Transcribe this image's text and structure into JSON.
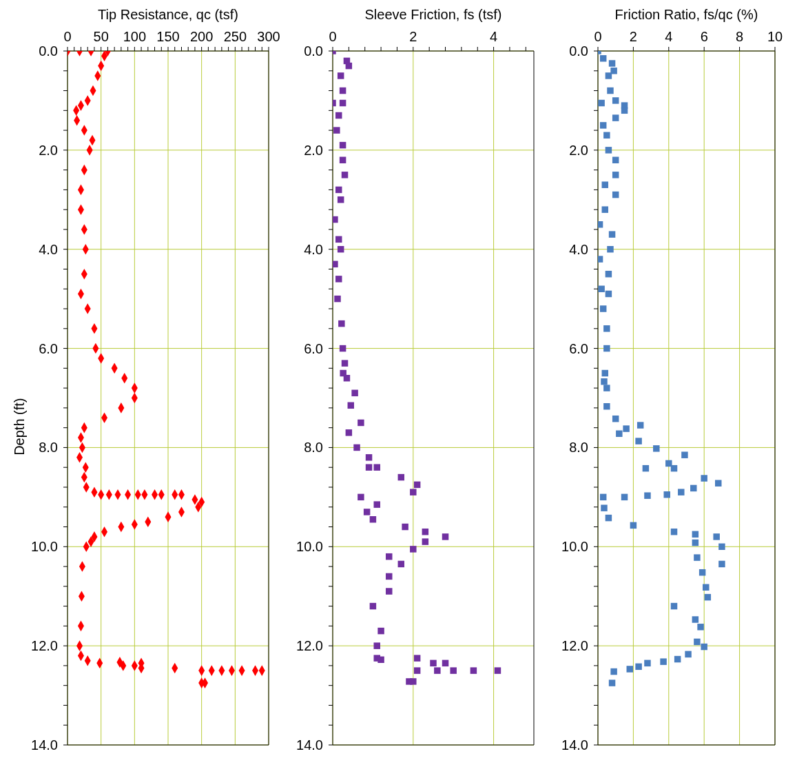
{
  "chart_data": [
    {
      "type": "scatter",
      "xlabel": "Tip Resistance, qc (tsf)",
      "ylabel": "Depth (ft)",
      "marker": "diamond",
      "grid": true,
      "xlim": [
        0,
        300
      ],
      "xticks": [
        0,
        {
          "value": 10,
          "label": null
        },
        {
          "value": 20,
          "label": null
        },
        {
          "value": 30,
          "label": null
        },
        {
          "value": 40,
          "label": null
        },
        50,
        {
          "value": 60,
          "label": null
        },
        {
          "value": 70,
          "label": null
        },
        {
          "value": 80,
          "label": null
        },
        {
          "value": 90,
          "label": null
        },
        100,
        {
          "value": 110,
          "label": null
        },
        {
          "value": 120,
          "label": null
        },
        {
          "value": 130,
          "label": null
        },
        {
          "value": 140,
          "label": null
        },
        150,
        {
          "value": 160,
          "label": null
        },
        {
          "value": 170,
          "label": null
        },
        {
          "value": 180,
          "label": null
        },
        {
          "value": 190,
          "label": null
        },
        200,
        {
          "value": 210,
          "label": null
        },
        {
          "value": 220,
          "label": null
        },
        {
          "value": 230,
          "label": null
        },
        {
          "value": 240,
          "label": null
        },
        250,
        {
          "value": 260,
          "label": null
        },
        {
          "value": 270,
          "label": null
        },
        {
          "value": 280,
          "label": null
        },
        {
          "value": 290,
          "label": null
        },
        300
      ],
      "ylim": [
        14,
        0
      ],
      "yticks": [
        {
          "value": 0,
          "label": "0.0"
        },
        {
          "value": 0.4,
          "label": null
        },
        {
          "value": 0.8,
          "label": null
        },
        {
          "value": 1.2,
          "label": null
        },
        {
          "value": 1.6,
          "label": null
        },
        {
          "value": 2,
          "label": "2.0"
        },
        {
          "value": 2.4,
          "label": null
        },
        {
          "value": 2.8,
          "label": null
        },
        {
          "value": 3.2,
          "label": null
        },
        {
          "value": 3.6,
          "label": null
        },
        {
          "value": 4,
          "label": "4.0"
        },
        {
          "value": 4.4,
          "label": null
        },
        {
          "value": 4.8,
          "label": null
        },
        {
          "value": 5.2,
          "label": null
        },
        {
          "value": 5.6,
          "label": null
        },
        {
          "value": 6,
          "label": "6.0"
        },
        {
          "value": 6.4,
          "label": null
        },
        {
          "value": 6.8,
          "label": null
        },
        {
          "value": 7.2,
          "label": null
        },
        {
          "value": 7.6,
          "label": null
        },
        {
          "value": 8,
          "label": "8.0"
        },
        {
          "value": 8.4,
          "label": null
        },
        {
          "value": 8.8,
          "label": null
        },
        {
          "value": 9.2,
          "label": null
        },
        {
          "value": 9.6,
          "label": null
        },
        {
          "value": 10,
          "label": "10.0"
        },
        {
          "value": 10.4,
          "label": null
        },
        {
          "value": 10.8,
          "label": null
        },
        {
          "value": 11.2,
          "label": null
        },
        {
          "value": 11.6,
          "label": null
        },
        {
          "value": 12,
          "label": "12.0"
        },
        {
          "value": 12.4,
          "label": null
        },
        {
          "value": 12.8,
          "label": null
        },
        {
          "value": 13.2,
          "label": null
        },
        {
          "value": 13.6,
          "label": null
        },
        {
          "value": 14,
          "label": "14.0"
        }
      ],
      "series": [
        {
          "color": "#ff0000",
          "x": [
            0,
            18,
            35,
            60,
            55,
            50,
            45,
            38,
            30,
            20,
            13,
            14,
            25,
            37,
            33,
            25,
            20,
            20,
            25,
            27,
            25,
            20,
            30,
            40,
            42,
            50,
            70,
            85,
            100,
            100,
            80,
            55,
            25,
            20,
            22,
            18,
            27,
            25,
            28,
            40,
            50,
            62,
            75,
            90,
            105,
            115,
            130,
            140,
            160,
            170,
            190,
            200,
            195,
            170,
            150,
            120,
            100,
            80,
            55,
            40,
            35,
            28,
            22,
            21,
            20,
            18,
            20,
            30,
            48,
            78,
            83,
            100,
            110,
            110,
            160,
            200,
            215,
            230,
            245,
            260,
            280,
            290,
            200,
            205
          ],
          "values": [
            0,
            0,
            0,
            0,
            0.1,
            0.3,
            0.5,
            0.8,
            1,
            1.1,
            1.2,
            1.4,
            1.6,
            1.8,
            2,
            2.4,
            2.8,
            3.2,
            3.6,
            4,
            4.5,
            4.9,
            5.2,
            5.6,
            6,
            6.2,
            6.4,
            6.6,
            6.8,
            7,
            7.2,
            7.4,
            7.6,
            7.8,
            8,
            8.2,
            8.4,
            8.6,
            8.8,
            8.9,
            8.95,
            8.95,
            8.95,
            8.95,
            8.95,
            8.95,
            8.95,
            8.95,
            8.95,
            8.95,
            9.05,
            9.1,
            9.2,
            9.3,
            9.4,
            9.5,
            9.55,
            9.6,
            9.7,
            9.8,
            9.9,
            10,
            10.4,
            11,
            11.6,
            12,
            12.2,
            12.3,
            12.35,
            12.33,
            12.4,
            12.4,
            12.35,
            12.45,
            12.45,
            12.5,
            12.5,
            12.5,
            12.5,
            12.5,
            12.5,
            12.5,
            12.75,
            12.75
          ]
        }
      ]
    },
    {
      "type": "scatter",
      "xlabel": "Sleeve Friction, fs (tsf)",
      "marker": "square",
      "grid": true,
      "xlim": [
        0,
        5
      ],
      "xticks": [
        0,
        {
          "value": 0.4,
          "label": null
        },
        {
          "value": 0.8,
          "label": null
        },
        {
          "value": 1.2,
          "label": null
        },
        {
          "value": 1.6,
          "label": null
        },
        2,
        {
          "value": 2.4,
          "label": null
        },
        {
          "value": 2.8,
          "label": null
        },
        {
          "value": 3.2,
          "label": null
        },
        {
          "value": 3.6,
          "label": null
        },
        4,
        {
          "value": 4.4,
          "label": null
        },
        {
          "value": 4.8,
          "label": null
        }
      ],
      "ylim": [
        14,
        0
      ],
      "yticks": [
        {
          "value": 0,
          "label": "0.0"
        },
        {
          "value": 0.4,
          "label": null
        },
        {
          "value": 0.8,
          "label": null
        },
        {
          "value": 1.2,
          "label": null
        },
        {
          "value": 1.6,
          "label": null
        },
        {
          "value": 2,
          "label": "2.0"
        },
        {
          "value": 2.4,
          "label": null
        },
        {
          "value": 2.8,
          "label": null
        },
        {
          "value": 3.2,
          "label": null
        },
        {
          "value": 3.6,
          "label": null
        },
        {
          "value": 4,
          "label": "4.0"
        },
        {
          "value": 4.4,
          "label": null
        },
        {
          "value": 4.8,
          "label": null
        },
        {
          "value": 5.2,
          "label": null
        },
        {
          "value": 5.6,
          "label": null
        },
        {
          "value": 6,
          "label": "6.0"
        },
        {
          "value": 6.4,
          "label": null
        },
        {
          "value": 6.8,
          "label": null
        },
        {
          "value": 7.2,
          "label": null
        },
        {
          "value": 7.6,
          "label": null
        },
        {
          "value": 8,
          "label": "8.0"
        },
        {
          "value": 8.4,
          "label": null
        },
        {
          "value": 8.8,
          "label": null
        },
        {
          "value": 9.2,
          "label": null
        },
        {
          "value": 9.6,
          "label": null
        },
        {
          "value": 10,
          "label": "10.0"
        },
        {
          "value": 10.4,
          "label": null
        },
        {
          "value": 10.8,
          "label": null
        },
        {
          "value": 11.2,
          "label": null
        },
        {
          "value": 11.6,
          "label": null
        },
        {
          "value": 12,
          "label": "12.0"
        },
        {
          "value": 12.4,
          "label": null
        },
        {
          "value": 12.8,
          "label": null
        },
        {
          "value": 13.2,
          "label": null
        },
        {
          "value": 13.6,
          "label": null
        },
        {
          "value": 14,
          "label": "14.0"
        }
      ],
      "series": [
        {
          "color": "#7030a0",
          "x": [
            0,
            0.35,
            0.4,
            0.2,
            0.25,
            0,
            0.25,
            0.15,
            0.1,
            0.25,
            0.25,
            0.3,
            0.15,
            0.2,
            0.05,
            0.15,
            0.2,
            0.05,
            0.15,
            0.12,
            0.22,
            0.25,
            0.3,
            0.35,
            0.26,
            0.55,
            0.45,
            0.7,
            0.4,
            0.6,
            0.9,
            1.1,
            0.9,
            1.7,
            2.1,
            2,
            0.7,
            1.1,
            0.85,
            1,
            1.8,
            2.3,
            2.8,
            2.3,
            2,
            1.4,
            1.7,
            1.4,
            1.4,
            1,
            1.2,
            1.1,
            1.1,
            1.2,
            2.1,
            2.5,
            2.8,
            2.1,
            2.6,
            3,
            3.5,
            4.1,
            1.9,
            2
          ],
          "values": [
            0,
            0.2,
            0.3,
            0.5,
            0.8,
            1.05,
            1.05,
            1.3,
            1.6,
            1.9,
            2.2,
            2.5,
            2.8,
            3,
            3.4,
            3.8,
            4,
            4.3,
            4.6,
            5,
            5.5,
            6,
            6.3,
            6.6,
            6.5,
            6.9,
            7.15,
            7.5,
            7.7,
            8,
            8.2,
            8.4,
            8.4,
            8.6,
            8.75,
            8.9,
            9,
            9.15,
            9.3,
            9.45,
            9.6,
            9.7,
            9.8,
            9.9,
            10.05,
            10.2,
            10.35,
            10.6,
            10.9,
            11.2,
            11.7,
            12,
            12.25,
            12.28,
            12.25,
            12.35,
            12.35,
            12.5,
            12.5,
            12.5,
            12.5,
            12.5,
            12.72,
            12.72
          ]
        }
      ]
    },
    {
      "type": "scatter",
      "xlabel": "Friction Ratio, fs/qc (%)",
      "marker": "square",
      "grid": true,
      "xlim": [
        0,
        10
      ],
      "xticks": [
        0,
        2,
        4,
        6,
        8,
        10
      ],
      "ylim": [
        14,
        0
      ],
      "yticks": [
        {
          "value": 0,
          "label": "0.0"
        },
        {
          "value": 0.4,
          "label": null
        },
        {
          "value": 0.8,
          "label": null
        },
        {
          "value": 1.2,
          "label": null
        },
        {
          "value": 1.6,
          "label": null
        },
        {
          "value": 2,
          "label": "2.0"
        },
        {
          "value": 2.4,
          "label": null
        },
        {
          "value": 2.8,
          "label": null
        },
        {
          "value": 3.2,
          "label": null
        },
        {
          "value": 3.6,
          "label": null
        },
        {
          "value": 4,
          "label": "4.0"
        },
        {
          "value": 4.4,
          "label": null
        },
        {
          "value": 4.8,
          "label": null
        },
        {
          "value": 5.2,
          "label": null
        },
        {
          "value": 5.6,
          "label": null
        },
        {
          "value": 6,
          "label": "6.0"
        },
        {
          "value": 6.4,
          "label": null
        },
        {
          "value": 6.8,
          "label": null
        },
        {
          "value": 7.2,
          "label": null
        },
        {
          "value": 7.6,
          "label": null
        },
        {
          "value": 8,
          "label": "8.0"
        },
        {
          "value": 8.4,
          "label": null
        },
        {
          "value": 8.8,
          "label": null
        },
        {
          "value": 9.2,
          "label": null
        },
        {
          "value": 9.6,
          "label": null
        },
        {
          "value": 10,
          "label": "10.0"
        },
        {
          "value": 10.4,
          "label": null
        },
        {
          "value": 10.8,
          "label": null
        },
        {
          "value": 11.2,
          "label": null
        },
        {
          "value": 11.6,
          "label": null
        },
        {
          "value": 12,
          "label": "12.0"
        },
        {
          "value": 12.4,
          "label": null
        },
        {
          "value": 12.8,
          "label": null
        },
        {
          "value": 13.2,
          "label": null
        },
        {
          "value": 13.6,
          "label": null
        },
        {
          "value": 14,
          "label": "14.0"
        }
      ],
      "series": [
        {
          "color": "#4a7ebf",
          "x": [
            0,
            0.3,
            0.8,
            0.9,
            0.6,
            0.7,
            1,
            0.2,
            1.5,
            1.5,
            1,
            0.3,
            0.5,
            0.6,
            1,
            1,
            0.4,
            1,
            0.4,
            0.1,
            0.8,
            0.7,
            0.1,
            0.6,
            0.2,
            0.6,
            0.3,
            0.5,
            0.5,
            0.4,
            0.5,
            0.35,
            0.5,
            1,
            2.4,
            1.6,
            1.2,
            2.3,
            3.3,
            4.9,
            4,
            2.7,
            4.3,
            6,
            6.8,
            5.4,
            4.7,
            3.9,
            2.8,
            1.5,
            0.3,
            0.35,
            0.6,
            2,
            4.3,
            5.5,
            6.7,
            5.5,
            7,
            5.6,
            7,
            5.9,
            6.1,
            6.2,
            4.3,
            5.5,
            5.8,
            5.6,
            6,
            5.1,
            4.5,
            3.7,
            2.8,
            2.3,
            1.8,
            0.9,
            0.8
          ],
          "values": [
            0,
            0.15,
            0.25,
            0.4,
            0.5,
            0.8,
            1,
            1.05,
            1.1,
            1.2,
            1.35,
            1.5,
            1.7,
            2,
            2.2,
            2.5,
            2.7,
            2.9,
            3.2,
            3.5,
            3.7,
            4,
            4.2,
            4.5,
            4.8,
            4.9,
            5.2,
            5.6,
            6,
            6.5,
            6.8,
            6.67,
            7.17,
            7.42,
            7.55,
            7.62,
            7.72,
            7.87,
            8.02,
            8.15,
            8.32,
            8.42,
            8.42,
            8.62,
            8.72,
            8.82,
            8.9,
            8.95,
            8.97,
            9,
            9,
            9.22,
            9.42,
            9.57,
            9.7,
            9.75,
            9.8,
            9.92,
            10,
            10.22,
            10.35,
            10.52,
            10.82,
            11.02,
            11.2,
            11.47,
            11.62,
            11.92,
            12.02,
            12.17,
            12.27,
            12.32,
            12.35,
            12.42,
            12.47,
            12.52,
            12.75
          ]
        }
      ]
    }
  ]
}
